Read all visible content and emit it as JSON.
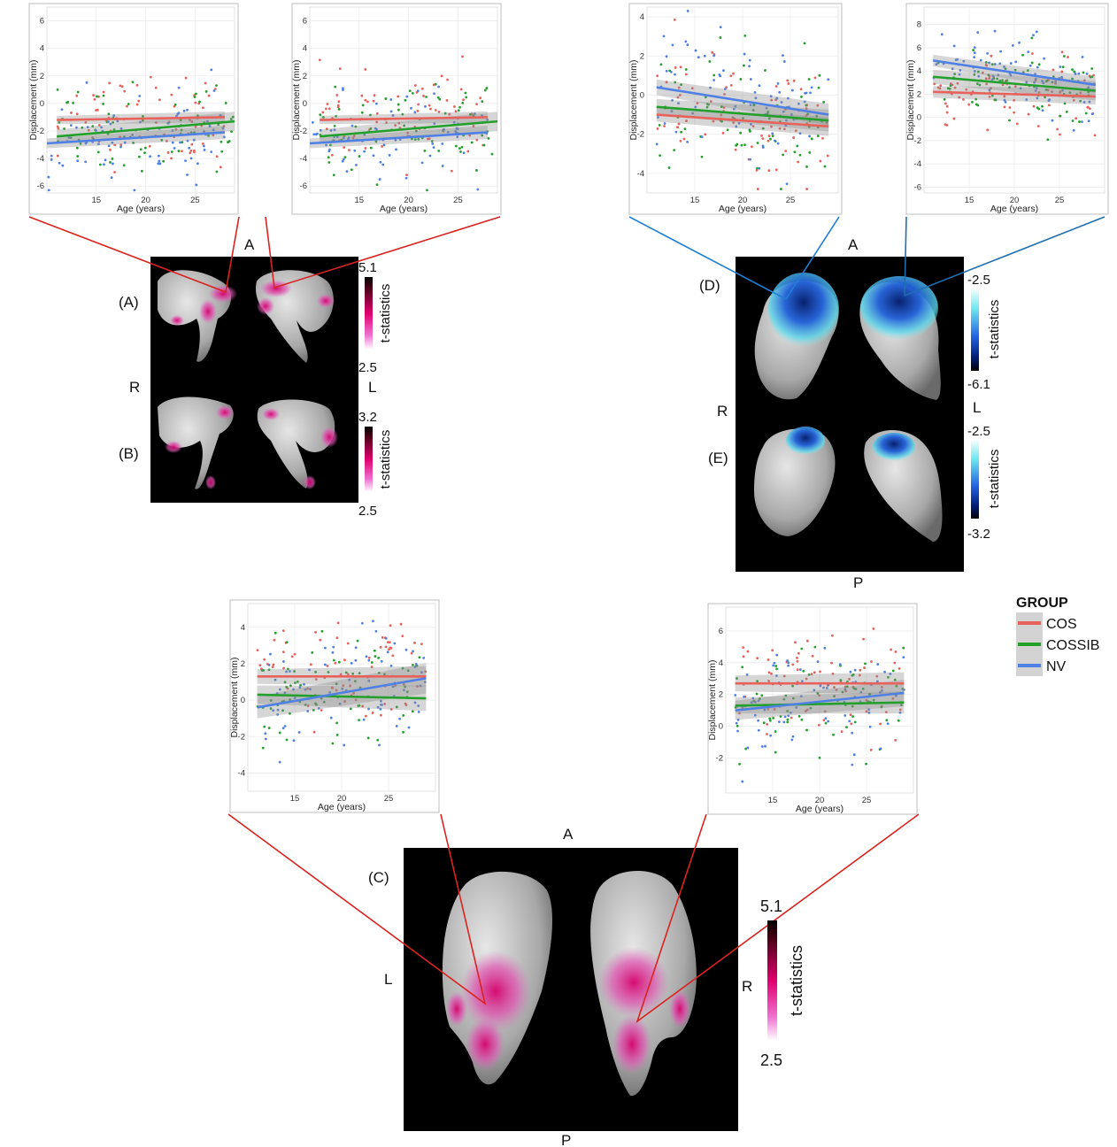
{
  "colors": {
    "COS": "#e8615a",
    "COSSIB": "#22a02b",
    "NV": "#4f80e6"
  },
  "legend": {
    "title": "GROUP",
    "items": [
      "COS",
      "COSSIB",
      "NV"
    ]
  },
  "brain_labels": {
    "panel_A": "(A)",
    "panel_B": "(B)",
    "panel_C": "(C)",
    "panel_D": "(D)",
    "panel_E": "(E)",
    "anterior": "A",
    "posterior": "P",
    "right": "R",
    "left": "L"
  },
  "colorbars": [
    {
      "id": "cbA",
      "max": "5.1",
      "min": "2.5",
      "label": "t-statistics",
      "scheme": "pink"
    },
    {
      "id": "cbB",
      "max": "3.2",
      "min": "2.5",
      "label": "t-statistics",
      "scheme": "pink"
    },
    {
      "id": "cbD",
      "max": "-2.5",
      "min": "-6.1",
      "label": "t-statistics",
      "scheme": "blue"
    },
    {
      "id": "cbE",
      "max": "-2.5",
      "min": "-3.2",
      "label": "t-statistics",
      "scheme": "blue"
    },
    {
      "id": "cbC",
      "max": "5.1",
      "min": "2.5",
      "label": "t-statistics",
      "scheme": "pink"
    }
  ],
  "chart_data": [
    {
      "id": "p1",
      "type": "scatter",
      "xlabel": "Age (years)",
      "ylabel": "Displacement (mm)",
      "xlim": [
        10,
        29
      ],
      "ylim": [
        -6.5,
        7
      ],
      "xticks": [
        15,
        20,
        25
      ],
      "yticks": [
        -6,
        -4,
        -2,
        0,
        2,
        4,
        6
      ],
      "series": [
        {
          "name": "COS",
          "fit": [
            [
              11,
              -1.2
            ],
            [
              28,
              -1.0
            ]
          ],
          "ci": 0.3
        },
        {
          "name": "COSSIB",
          "fit": [
            [
              11,
              -2.4
            ],
            [
              29,
              -1.3
            ]
          ],
          "ci": 0.5
        },
        {
          "name": "NV",
          "fit": [
            [
              10,
              -2.9
            ],
            [
              28,
              -2.1
            ]
          ],
          "ci": 0.35
        }
      ]
    },
    {
      "id": "p2",
      "type": "scatter",
      "xlabel": "Age (years)",
      "ylabel": "Displacement (mm)",
      "xlim": [
        10,
        29
      ],
      "ylim": [
        -6.5,
        7
      ],
      "xticks": [
        15,
        20,
        25
      ],
      "yticks": [
        -6,
        -4,
        -2,
        0,
        2,
        4,
        6
      ],
      "series": [
        {
          "name": "COS",
          "fit": [
            [
              11,
              -1.2
            ],
            [
              28,
              -1.0
            ]
          ],
          "ci": 0.3
        },
        {
          "name": "COSSIB",
          "fit": [
            [
              11,
              -2.4
            ],
            [
              29,
              -1.3
            ]
          ],
          "ci": 0.5
        },
        {
          "name": "NV",
          "fit": [
            [
              10,
              -2.9
            ],
            [
              28,
              -2.1
            ]
          ],
          "ci": 0.35
        }
      ]
    },
    {
      "id": "p3",
      "type": "scatter",
      "xlabel": "Age (years)",
      "ylabel": "Displacement (mm)",
      "xlim": [
        10,
        30
      ],
      "ylim": [
        -5,
        4.5
      ],
      "xticks": [
        15,
        20,
        25
      ],
      "yticks": [
        -4,
        -2,
        0,
        2,
        4
      ],
      "series": [
        {
          "name": "COS",
          "fit": [
            [
              11,
              -1.0
            ],
            [
              29,
              -1.6
            ]
          ],
          "ci": 0.35
        },
        {
          "name": "COSSIB",
          "fit": [
            [
              11,
              -0.6
            ],
            [
              29,
              -1.3
            ]
          ],
          "ci": 0.4
        },
        {
          "name": "NV",
          "fit": [
            [
              11,
              0.4
            ],
            [
              29,
              -1.0
            ]
          ],
          "ci": 0.4
        }
      ]
    },
    {
      "id": "p4",
      "type": "scatter",
      "xlabel": "Age (years)",
      "ylabel": "Displacement (mm)",
      "xlim": [
        10,
        30
      ],
      "ylim": [
        -6.5,
        9.5
      ],
      "xticks": [
        15,
        20,
        25
      ],
      "yticks": [
        -6,
        -4,
        -2,
        0,
        2,
        4,
        6,
        8
      ],
      "series": [
        {
          "name": "COS",
          "fit": [
            [
              11,
              2.2
            ],
            [
              29,
              1.8
            ]
          ],
          "ci": 0.5
        },
        {
          "name": "COSSIB",
          "fit": [
            [
              11,
              3.5
            ],
            [
              29,
              2.3
            ]
          ],
          "ci": 0.6
        },
        {
          "name": "NV",
          "fit": [
            [
              11,
              4.9
            ],
            [
              29,
              2.8
            ]
          ],
          "ci": 0.5
        }
      ]
    },
    {
      "id": "p5",
      "type": "scatter",
      "xlabel": "Age (years)",
      "ylabel": "Displacement (mm)",
      "xlim": [
        10,
        30
      ],
      "ylim": [
        -5,
        5.3
      ],
      "xticks": [
        15,
        20,
        25
      ],
      "yticks": [
        -4,
        -2,
        0,
        2,
        4
      ],
      "series": [
        {
          "name": "COS",
          "fit": [
            [
              11,
              1.3
            ],
            [
              29,
              1.3
            ]
          ],
          "ci": 0.4
        },
        {
          "name": "COSSIB",
          "fit": [
            [
              11,
              0.3
            ],
            [
              29,
              0.1
            ]
          ],
          "ci": 0.5
        },
        {
          "name": "NV",
          "fit": [
            [
              11,
              -0.4
            ],
            [
              29,
              1.2
            ]
          ],
          "ci": 0.6
        }
      ]
    },
    {
      "id": "p6",
      "type": "scatter",
      "xlabel": "Age (years)",
      "ylabel": "Displacement (mm)",
      "xlim": [
        10,
        30
      ],
      "ylim": [
        -4.2,
        7.5
      ],
      "xticks": [
        15,
        20,
        25
      ],
      "yticks": [
        -2,
        0,
        2,
        4,
        6
      ],
      "series": [
        {
          "name": "COS",
          "fit": [
            [
              11,
              2.7
            ],
            [
              29,
              2.7
            ]
          ],
          "ci": 0.5
        },
        {
          "name": "COSSIB",
          "fit": [
            [
              11,
              1.3
            ],
            [
              29,
              1.5
            ]
          ],
          "ci": 0.5
        },
        {
          "name": "NV",
          "fit": [
            [
              11,
              1.0
            ],
            [
              29,
              2.1
            ]
          ],
          "ci": 0.6
        }
      ]
    }
  ]
}
